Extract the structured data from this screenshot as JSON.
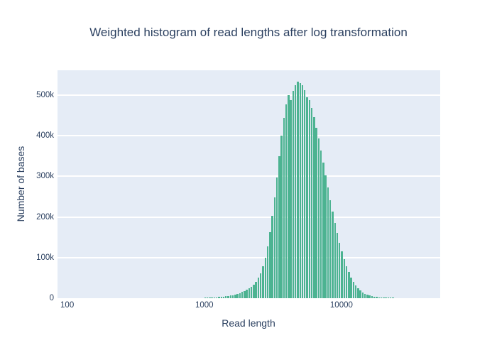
{
  "figure": {
    "title": "Weighted histogram of read lengths after log transformation",
    "x_axis": {
      "title": "Read length"
    },
    "y_axis": {
      "title": "Number of bases"
    },
    "colors": {
      "paper_bg": "#ffffff",
      "plot_bg": "#e5ecf6",
      "grid": "#ffffff",
      "bar_fill": "#4CB391",
      "text": "#2a3f5f"
    }
  },
  "chart_data": {
    "type": "bar",
    "subtype": "weighted-histogram",
    "title": "Weighted histogram of read lengths after log transformation",
    "xlabel": "Read length",
    "ylabel": "Number of bases",
    "x_scale": "log",
    "grid": "horizontal-only",
    "legend": "none",
    "x_axis_range": [
      85,
      52500
    ],
    "y_axis_range": [
      0,
      561000
    ],
    "x_ticks": [
      {
        "label": "100",
        "value": 100
      },
      {
        "label": "1000",
        "value": 1000
      },
      {
        "label": "10000",
        "value": 10000
      }
    ],
    "y_ticks": [
      {
        "label": "0",
        "value": 0
      },
      {
        "label": "100k",
        "value": 100000
      },
      {
        "label": "200k",
        "value": 200000
      },
      {
        "label": "300k",
        "value": 300000
      },
      {
        "label": "400k",
        "value": 400000
      },
      {
        "label": "500k",
        "value": 500000
      }
    ],
    "bin_center_start": 742,
    "bin_ratio": 1.0397,
    "bar_fill_fraction": 0.75,
    "series": [
      {
        "name": "Number of bases",
        "color": "#4CB391",
        "values": [
          300,
          350,
          400,
          450,
          550,
          650,
          750,
          900,
          1050,
          1200,
          1400,
          1700,
          2100,
          2500,
          3000,
          3500,
          4100,
          4800,
          5600,
          6600,
          7800,
          9200,
          10800,
          12700,
          15000,
          17600,
          20700,
          24400,
          28700,
          34000,
          41000,
          50000,
          62000,
          78000,
          100000,
          128000,
          162000,
          202000,
          248000,
          298000,
          350000,
          400000,
          444000,
          478000,
          500000,
          488000,
          510000,
          525000,
          533000,
          530000,
          524000,
          512000,
          495000,
          487000,
          468000,
          445000,
          420000,
          393000,
          364000,
          334000,
          303000,
          272000,
          242000,
          213000,
          186000,
          160000,
          137000,
          115000,
          96000,
          79000,
          64000,
          51000,
          40000,
          31000,
          24000,
          18500,
          14200,
          10900,
          8300,
          6300,
          4800,
          3700,
          2900,
          2300,
          1900,
          1600,
          1400,
          1200,
          1050,
          920,
          800,
          700,
          620,
          550,
          480,
          420,
          370,
          320,
          280,
          250
        ]
      }
    ]
  }
}
